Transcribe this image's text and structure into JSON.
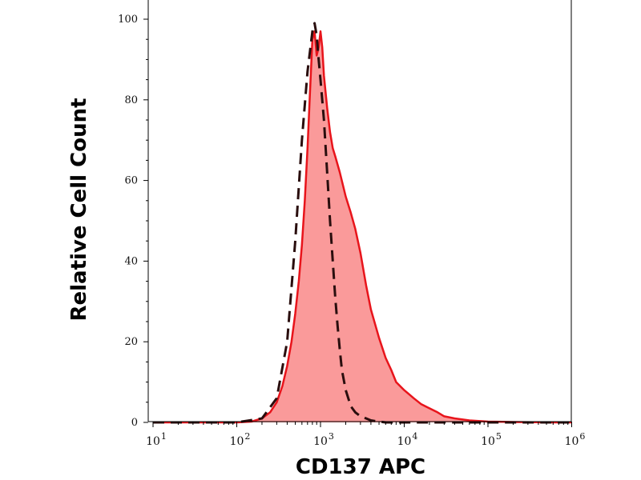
{
  "chart_data": {
    "type": "area",
    "xlabel": "CD137 APC",
    "ylabel": "Relative Cell Count",
    "x_scale": "log",
    "xlim": [
      10,
      1000000
    ],
    "ylim": [
      0,
      100
    ],
    "x_ticks": [
      {
        "value": 10,
        "base": "10",
        "exp": "1"
      },
      {
        "value": 100,
        "base": "10",
        "exp": "2"
      },
      {
        "value": 1000,
        "base": "10",
        "exp": "3"
      },
      {
        "value": 10000,
        "base": "10",
        "exp": "4"
      },
      {
        "value": 100000,
        "base": "10",
        "exp": "5"
      },
      {
        "value": 1000000,
        "base": "10",
        "exp": "6"
      }
    ],
    "y_ticks": [
      "0",
      "20",
      "40",
      "60",
      "80",
      "100"
    ],
    "grid": false,
    "legend": "none",
    "colors": {
      "stained_fill": "#fa9a9a",
      "stained_line": "#e8141b",
      "control_line": "#2a0e0e",
      "axis": "#000000"
    },
    "series": [
      {
        "style": "filled-solid",
        "x": [
          10,
          30,
          100,
          150,
          200,
          250,
          300,
          350,
          400,
          450,
          500,
          550,
          600,
          650,
          700,
          750,
          800,
          850,
          900,
          950,
          1000,
          1050,
          1100,
          1200,
          1300,
          1400,
          1500,
          1700,
          2000,
          2300,
          2600,
          3000,
          3500,
          4000,
          5000,
          6000,
          7000,
          8000,
          10000,
          13000,
          16000,
          20000,
          25000,
          30000,
          40000,
          60000,
          100000,
          200000,
          600000,
          1000000
        ],
        "y": [
          0,
          0,
          0,
          0.2,
          1,
          2.5,
          5,
          9,
          14,
          20,
          27,
          35,
          44,
          55,
          68,
          82,
          95,
          97,
          91,
          93,
          97,
          93,
          86,
          78,
          72,
          68,
          66,
          62,
          56,
          52,
          48,
          42,
          34,
          28,
          21,
          16,
          13,
          10,
          8,
          6,
          4.5,
          3.5,
          2.5,
          1.5,
          1,
          0.5,
          0.2,
          0.1,
          0,
          0
        ]
      },
      {
        "style": "dashed",
        "x": [
          10,
          100,
          200,
          300,
          400,
          500,
          600,
          700,
          800,
          850,
          900,
          950,
          1000,
          1100,
          1200,
          1300,
          1400,
          1500,
          1600,
          1700,
          1800,
          2000,
          2300,
          2600,
          3000,
          3500,
          4000,
          5000,
          6000,
          10000,
          1000000
        ],
        "y": [
          0,
          0,
          1,
          6,
          20,
          45,
          70,
          87,
          97,
          99,
          96,
          90,
          85,
          75,
          62,
          50,
          40,
          31,
          24,
          18,
          13,
          8,
          4,
          2.5,
          1.5,
          1,
          0.5,
          0.2,
          0,
          0,
          0
        ]
      }
    ]
  }
}
